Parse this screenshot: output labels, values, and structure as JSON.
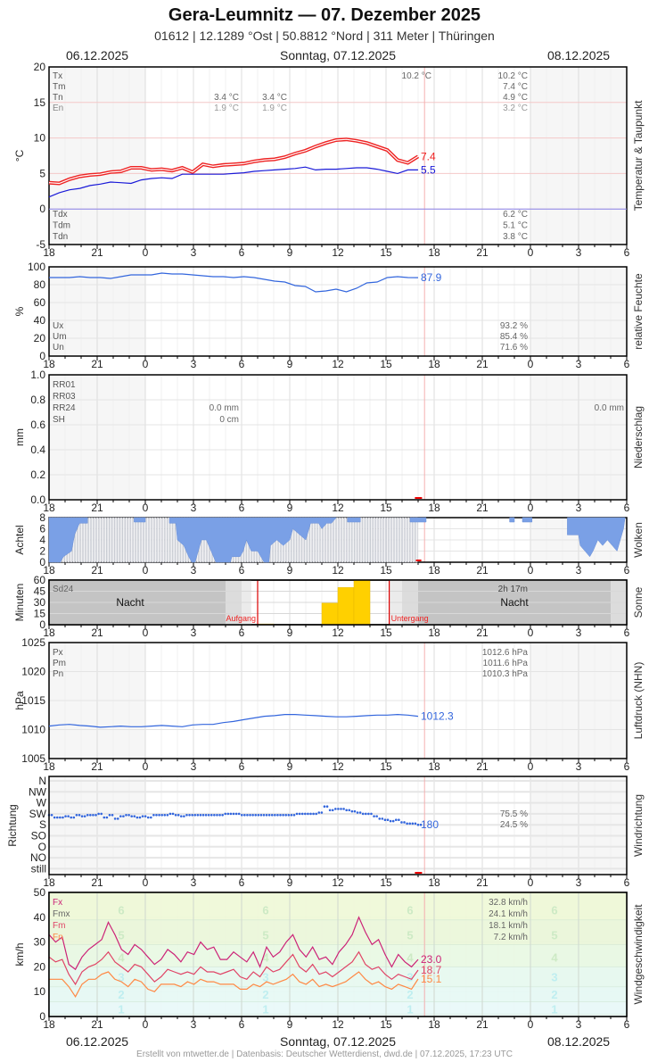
{
  "header": {
    "title": "Gera-Leumnitz  —  07. Dezember 2025",
    "subtitle": "01612  |  12.1289 °Ost  |  50.8812 °Nord  |  311 Meter  |  Thüringen",
    "date_left": "06.12.2025",
    "date_center": "Sonntag, 07.12.2025",
    "date_right": "08.12.2025"
  },
  "footer": "Erstellt von mtwetter.de | Datenbasis: Deutscher Wetterdienst, dwd.de | 07.12.2025, 17:23 UTC",
  "x_ticks": [
    "18",
    "21",
    "0",
    "3",
    "6",
    "9",
    "12",
    "15",
    "18",
    "21",
    "0",
    "3",
    "6"
  ],
  "chart_data": [
    {
      "type": "line",
      "title": "Temperatur & Taupunkt",
      "ylabel": "°C",
      "ylim": [
        -5,
        20
      ],
      "yticks": [
        "20",
        "15",
        "10",
        "5",
        "0",
        "-5"
      ],
      "x": "hours from 06.12. 18:00 to 08.12. 06:00",
      "series": [
        {
          "name": "Temperatur",
          "color": "#ee2222",
          "last_value": "7.4",
          "values": [
            3.7,
            3.6,
            4.2,
            4.6,
            4.8,
            4.9,
            5.2,
            5.3,
            5.8,
            5.8,
            5.5,
            5.6,
            5.4,
            5.8,
            5.2,
            6.3,
            6.0,
            6.2,
            6.3,
            6.4,
            6.7,
            6.9,
            7.0,
            7.3,
            7.8,
            8.2,
            8.8,
            9.3,
            9.7,
            9.8,
            9.6,
            9.3,
            8.8,
            8.3,
            6.9,
            6.5,
            7.4
          ]
        },
        {
          "name": "Taupunkt",
          "color": "#1a1ad8",
          "last_value": "5.5",
          "values": [
            1.7,
            2.3,
            2.7,
            2.9,
            3.3,
            3.5,
            3.8,
            3.7,
            3.6,
            4.1,
            4.3,
            4.4,
            4.3,
            4.9,
            4.9,
            4.9,
            4.9,
            4.9,
            5.0,
            5.1,
            5.3,
            5.4,
            5.5,
            5.6,
            5.7,
            5.9,
            5.5,
            5.6,
            5.6,
            5.7,
            5.8,
            5.8,
            5.6,
            5.3,
            5.0,
            5.5,
            5.5
          ]
        }
      ],
      "legend_top": [
        {
          "label": "Tx",
          "day1": "",
          "day2": "10.2 °C",
          "day3": "10.2 °C"
        },
        {
          "label": "Tm",
          "day1": "",
          "day2": "",
          "day3": "7.4 °C"
        },
        {
          "label": "Tn",
          "day1": "3.4 °C",
          "day2": "3.4 °C",
          "day3": "4.9 °C"
        },
        {
          "label": "En",
          "day1": "1.9 °C",
          "day2": "1.9 °C",
          "day3": "3.2 °C"
        }
      ],
      "legend_bottom": [
        {
          "label": "Tdx",
          "value": "6.2 °C"
        },
        {
          "label": "Tdm",
          "value": "5.1 °C"
        },
        {
          "label": "Tdn",
          "value": "3.8 °C"
        }
      ]
    },
    {
      "type": "line",
      "title": "relative Feuchte",
      "ylabel": "%",
      "ylim": [
        0,
        100
      ],
      "yticks": [
        "100",
        "80",
        "60",
        "40",
        "20",
        "0"
      ],
      "series": [
        {
          "name": "Feuchte",
          "color": "#3366dd",
          "last_value": "87.9",
          "values": [
            88,
            88,
            88,
            89,
            88,
            88,
            87,
            89,
            91,
            91,
            91,
            93,
            92,
            92,
            91,
            90,
            89,
            89,
            88,
            89,
            88,
            86,
            84,
            83,
            79,
            78,
            72,
            73,
            75,
            72,
            76,
            82,
            83,
            88,
            89,
            88,
            87.9
          ]
        }
      ],
      "legend": [
        {
          "label": "Ux",
          "value": "93.2 %"
        },
        {
          "label": "Um",
          "value": "85.4 %"
        },
        {
          "label": "Un",
          "value": "71.6 %"
        }
      ]
    },
    {
      "type": "bar",
      "title": "Niederschlag",
      "ylabel": "mm",
      "ylim": [
        0,
        1.0
      ],
      "yticks": [
        "1.0",
        "0.8",
        "0.6",
        "0.4",
        "0.2",
        "0.0"
      ],
      "values": [],
      "legend": [
        {
          "label": "RR01",
          "value": ""
        },
        {
          "label": "RR03",
          "value": ""
        },
        {
          "label": "RR24",
          "day1": "0.0 mm",
          "day3": "0.0 mm"
        },
        {
          "label": "SH",
          "day1": "0 cm"
        }
      ]
    },
    {
      "type": "bar",
      "title": "Wolken",
      "ylabel": "Achtel",
      "ylim": [
        0,
        8
      ],
      "yticks": [
        "8",
        "6",
        "4",
        "2",
        "0"
      ],
      "clear_sky_values": [
        8,
        8,
        7,
        7,
        7,
        7,
        8,
        8,
        8,
        8,
        7,
        5,
        2,
        6,
        6,
        8,
        6,
        8,
        8,
        8,
        8,
        8,
        8,
        8,
        8,
        8,
        8,
        8,
        8,
        8,
        8,
        8,
        8,
        8,
        8,
        8,
        8,
        8,
        8,
        8,
        8,
        8,
        8,
        8,
        8,
        8,
        8,
        8,
        8,
        8,
        8,
        8,
        8,
        8,
        8,
        8,
        8,
        8,
        8,
        8,
        8,
        8,
        8,
        8,
        8,
        8,
        8,
        8,
        8,
        8,
        8,
        8,
        8
      ],
      "values_eighths": [
        8,
        7,
        6,
        1,
        1,
        1,
        1,
        8,
        1,
        1,
        1,
        8,
        8,
        8,
        8,
        8,
        8,
        8,
        8,
        2,
        8,
        8,
        8,
        8,
        8,
        8,
        8,
        8,
        8,
        8,
        2,
        5,
        7,
        8,
        8,
        8,
        8,
        8,
        8,
        8,
        8,
        8,
        8,
        8,
        8,
        8,
        8,
        8,
        8,
        8,
        8,
        8,
        8,
        8,
        8,
        8,
        8,
        8,
        8,
        8,
        8,
        8,
        8,
        8,
        8,
        8,
        8,
        8,
        8,
        8,
        8,
        8,
        8
      ]
    },
    {
      "type": "bar",
      "title": "Sonne",
      "ylabel": "Minuten",
      "ylim": [
        0,
        60
      ],
      "yticks": [
        "60",
        "45",
        "30",
        "15",
        "0"
      ],
      "categories": [
        "07",
        "11",
        "12",
        "13"
      ],
      "values": [
        1,
        29,
        50,
        60
      ],
      "labels": {
        "sd24_label": "Sd24",
        "sd24_value": "2h 17m",
        "night": "Nacht",
        "sunrise": "Aufgang",
        "sunset": "Untergang"
      }
    },
    {
      "type": "line",
      "title": "Luftdruck (NHN)",
      "ylabel": "hPa",
      "ylim": [
        1005,
        1025
      ],
      "yticks": [
        "1025",
        "1020",
        "1015",
        "1010",
        "1005"
      ],
      "series": [
        {
          "name": "Luftdruck",
          "color": "#3366dd",
          "last_value": "1012.3",
          "values": [
            1010.6,
            1010.8,
            1010.9,
            1010.7,
            1010.6,
            1010.4,
            1010.5,
            1010.6,
            1010.5,
            1010.5,
            1010.6,
            1010.7,
            1010.6,
            1010.5,
            1010.8,
            1010.9,
            1010.9,
            1011.2,
            1011.4,
            1011.7,
            1012.0,
            1012.3,
            1012.4,
            1012.6,
            1012.6,
            1012.5,
            1012.4,
            1012.3,
            1012.2,
            1012.2,
            1012.3,
            1012.4,
            1012.5,
            1012.5,
            1012.6,
            1012.5,
            1012.3
          ]
        }
      ],
      "legend": [
        {
          "label": "Px",
          "value": "1012.6 hPa"
        },
        {
          "label": "Pm",
          "value": "1011.6 hPa"
        },
        {
          "label": "Pn",
          "value": "1010.3 hPa"
        }
      ]
    },
    {
      "type": "scatter",
      "title": "Windrichtung",
      "ylabel": "Richtung",
      "yticks": [
        "N",
        "NW",
        "W",
        "SW",
        "S",
        "SO",
        "O",
        "NO",
        "still"
      ],
      "series": [
        {
          "name": "Richtung (Grad)",
          "color": "#3366dd",
          "last_value": "180",
          "values": [
            220,
            210,
            210,
            215,
            210,
            220,
            215,
            220,
            220,
            225,
            210,
            220,
            205,
            215,
            220,
            215,
            210,
            215,
            210,
            220,
            220,
            220,
            225,
            220,
            215,
            220,
            220,
            220,
            220,
            220,
            220,
            220,
            225,
            225,
            225,
            220,
            220,
            220,
            220,
            220,
            220,
            220,
            220,
            220,
            220,
            225,
            225,
            225,
            225,
            230,
            255,
            240,
            245,
            245,
            240,
            235,
            230,
            225,
            225,
            215,
            205,
            200,
            195,
            200,
            190,
            185,
            185,
            180
          ]
        }
      ],
      "legend": [
        {
          "label": "",
          "value": "75.5 %"
        },
        {
          "label": "",
          "value": "24.5 %"
        }
      ]
    },
    {
      "type": "line",
      "title": "Windgeschwindigkeit",
      "ylabel": "km/h",
      "ylim": [
        0,
        50
      ],
      "yticks": [
        "50",
        "40",
        "30",
        "20",
        "10",
        "0"
      ],
      "beaufort_bands": [
        "1",
        "2",
        "3",
        "4",
        "5",
        "6"
      ],
      "series": [
        {
          "name": "Fx",
          "color": "#cc2277",
          "last_value": "23.0",
          "values": [
            33,
            30,
            32,
            21,
            19,
            24,
            27,
            29,
            31,
            38,
            33,
            27,
            25,
            29,
            27,
            24,
            21,
            23,
            27,
            25,
            22,
            26,
            25,
            30,
            27,
            28,
            23,
            23,
            26,
            24,
            22,
            26,
            20,
            28,
            24,
            26,
            30,
            33,
            27,
            24,
            28,
            23,
            24,
            21,
            26,
            29,
            33,
            40,
            34,
            29,
            31,
            25,
            20,
            25,
            22,
            20,
            23
          ]
        },
        {
          "name": "Fm",
          "color": "#e04466",
          "last_value": "18.7",
          "values": [
            24,
            22,
            23,
            17,
            13,
            18,
            20,
            21,
            23,
            26,
            22,
            20,
            18,
            21,
            20,
            17,
            14,
            16,
            19,
            18,
            17,
            18,
            17,
            20,
            18,
            18,
            17,
            18,
            19,
            16,
            15,
            18,
            16,
            20,
            18,
            19,
            22,
            25,
            20,
            18,
            21,
            17,
            18,
            16,
            18,
            20,
            22,
            26,
            21,
            19,
            20,
            17,
            15,
            17,
            16,
            15,
            18.7
          ]
        },
        {
          "name": "Fn",
          "color": "#ff8844",
          "last_value": "15.1",
          "values": [
            15,
            15,
            15,
            12,
            8,
            13,
            15,
            15,
            17,
            18,
            15,
            14,
            12,
            15,
            14,
            11,
            10,
            13,
            13,
            13,
            12,
            14,
            13,
            15,
            14,
            14,
            13,
            13,
            13,
            11,
            11,
            13,
            12,
            14,
            13,
            14,
            15,
            17,
            14,
            13,
            15,
            12,
            13,
            12,
            13,
            14,
            16,
            18,
            15,
            13,
            14,
            12,
            11,
            13,
            12,
            11,
            15.1
          ]
        }
      ],
      "legend": [
        {
          "label": "Fx",
          "color": "#cc2277",
          "value": "32.8 km/h"
        },
        {
          "label": "Fmx",
          "color": "#666666",
          "value": "24.1 km/h"
        },
        {
          "label": "Fm",
          "color": "#e04466",
          "value": "18.1 km/h"
        },
        {
          "label": "Fn",
          "color": "#ff8844",
          "value": "7.2 km/h"
        }
      ]
    }
  ]
}
